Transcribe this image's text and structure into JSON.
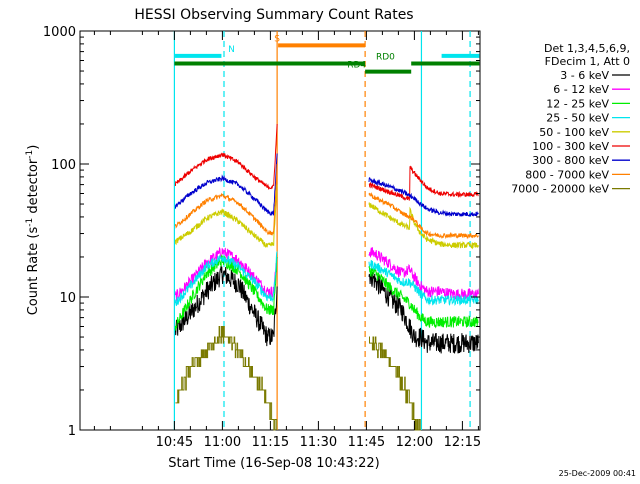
{
  "chart_data": {
    "type": "line",
    "title": "HESSI Observing Summary Count Rates",
    "xlabel": "Start Time (16-Sep-08 10:43:22)",
    "ylabel_main": "Count Rate (s",
    "ylabel_sup1": "-1",
    "ylabel_mid": " detector",
    "ylabel_sup2": "-1",
    "ylabel_end": ")",
    "y_scale": "log",
    "ylim": [
      1,
      1000
    ],
    "xlim_minutes": [
      615.5,
      740.5
    ],
    "x_ticks": [
      {
        "label": "10:45",
        "t": 645
      },
      {
        "label": "11:00",
        "t": 660
      },
      {
        "label": "11:15",
        "t": 675
      },
      {
        "label": "11:30",
        "t": 690
      },
      {
        "label": "11:45",
        "t": 705
      },
      {
        "label": "12:00",
        "t": 720
      },
      {
        "label": "12:15",
        "t": 735
      }
    ],
    "y_ticks": [
      {
        "label": "1",
        "v": 1
      },
      {
        "label": "10",
        "v": 10
      },
      {
        "label": "100",
        "v": 100
      },
      {
        "label": "1000",
        "v": 1000
      }
    ],
    "legend": {
      "header": [
        "Det 1,3,4,5,6,9,",
        "FDecim 1, Att 0"
      ],
      "entries": [
        {
          "label": "3 - 6 keV",
          "color": "#000000"
        },
        {
          "label": "6 - 12 keV",
          "color": "#ff00ff"
        },
        {
          "label": "12 - 25 keV",
          "color": "#00ee00"
        },
        {
          "label": "25 - 50 keV",
          "color": "#00e5ee"
        },
        {
          "label": "50 - 100 keV",
          "color": "#cccc00"
        },
        {
          "label": "100 - 300 keV",
          "color": "#ee0000"
        },
        {
          "label": "300 - 800 keV",
          "color": "#0000cc"
        },
        {
          "label": "800 - 7000 keV",
          "color": "#ff8000"
        },
        {
          "label": "7000 - 20000 keV",
          "color": "#7a7a00"
        }
      ]
    },
    "flag_bars": [
      {
        "label": "N",
        "color": "#00e5ee",
        "segments": [
          [
            645.2,
            659.7
          ],
          [
            728.5,
            740.3
          ]
        ],
        "level": 650,
        "label_t": 661.8
      },
      {
        "label": "S",
        "color": "#ff8000",
        "segments": [
          [
            677.4,
            704.6
          ]
        ],
        "level": 780,
        "label_t": 676.2
      },
      {
        "label": "RD0",
        "color": "#008000",
        "segments": [
          [
            645.0,
            704.6
          ],
          [
            719.0,
            740.3
          ]
        ],
        "level": 570,
        "label_t": 708.0
      },
      {
        "label": "RD4",
        "color": "#008000",
        "segments": [
          [
            704.6,
            719.0
          ]
        ],
        "level": 495,
        "label_t": 699.0
      }
    ],
    "markers": [
      {
        "type": "solid",
        "t": 645.0,
        "color": "#00e5ee"
      },
      {
        "type": "dashed",
        "t": 660.5,
        "color": "#00e5ee"
      },
      {
        "type": "solid",
        "t": 677.1,
        "color": "#ff8000"
      },
      {
        "type": "dashed",
        "t": 704.6,
        "color": "#ff8000"
      },
      {
        "type": "solid",
        "t": 722.2,
        "color": "#00e5ee"
      },
      {
        "type": "dashed",
        "t": 737.4,
        "color": "#00e5ee"
      }
    ],
    "series": [
      {
        "name": "3 - 6 keV",
        "color": "#000000",
        "noise": 0.18,
        "x": [
          645.3,
          650,
          655,
          660,
          665,
          670,
          674,
          676,
          677.1,
          705.8,
          708,
          712,
          716,
          718.5,
          720,
          722,
          724,
          728,
          732,
          736,
          740
        ],
        "y": [
          5.5,
          7.5,
          11,
          15,
          12.5,
          7.5,
          5,
          5,
          12,
          15,
          13,
          10,
          8,
          6,
          5,
          5,
          4.5,
          4.5,
          4.5,
          4.5,
          4.5
        ]
      },
      {
        "name": "6 - 12 keV",
        "color": "#ff00ff",
        "noise": 0.1,
        "x": [
          645.3,
          650,
          655,
          660,
          665,
          670,
          674,
          676,
          677.1,
          705.8,
          708,
          712,
          716,
          718.5,
          720,
          722,
          724,
          728,
          732,
          736,
          740
        ],
        "y": [
          10,
          13,
          18,
          22,
          19,
          14,
          11,
          11,
          20,
          22,
          21,
          18,
          15,
          16,
          14,
          12,
          11,
          11,
          10.5,
          10.5,
          10.5
        ]
      },
      {
        "name": "12 - 25 keV",
        "color": "#00ee00",
        "noise": 0.1,
        "x": [
          645.3,
          650,
          655,
          660,
          665,
          670,
          674,
          676,
          677.1,
          705.8,
          708,
          712,
          716,
          718.5,
          720,
          722,
          724,
          728,
          732,
          736,
          740
        ],
        "y": [
          6,
          9.5,
          15,
          19,
          16,
          11,
          8,
          8,
          20,
          16,
          15,
          12,
          10,
          9,
          8,
          7,
          6.5,
          6.5,
          6.5,
          6.5,
          6.5
        ]
      },
      {
        "name": "25 - 50 keV",
        "color": "#00e5ee",
        "noise": 0.08,
        "x": [
          645.3,
          650,
          655,
          660,
          665,
          670,
          674,
          676,
          677.1,
          705.8,
          708,
          712,
          716,
          718.5,
          720,
          722,
          724,
          728,
          732,
          736,
          740
        ],
        "y": [
          9,
          12,
          17,
          20,
          17,
          13,
          10,
          10,
          22,
          18,
          17,
          15,
          13,
          13,
          12,
          10.5,
          9.5,
          9.5,
          9.5,
          9.5,
          9.5
        ]
      },
      {
        "name": "50 - 100 keV",
        "color": "#cccc00",
        "noise": 0.05,
        "x": [
          645.3,
          650,
          655,
          660,
          665,
          670,
          674,
          676,
          677.1,
          705.8,
          708,
          712,
          716,
          718.5,
          718.6,
          720,
          722,
          724,
          728,
          732,
          736,
          740
        ],
        "y": [
          26,
          31,
          39,
          44,
          37,
          29,
          24,
          25,
          70,
          50,
          46,
          40,
          35,
          33,
          45,
          36,
          30,
          27,
          25,
          24.5,
          24.5,
          24.5
        ]
      },
      {
        "name": "100 - 300 keV",
        "color": "#ee0000",
        "noise": 0.04,
        "x": [
          645.3,
          650,
          655,
          660,
          665,
          670,
          674,
          676,
          677.1,
          705.8,
          708,
          712,
          716,
          718.5,
          718.6,
          720,
          722,
          724,
          728,
          732,
          736,
          740
        ],
        "y": [
          70,
          88,
          108,
          118,
          103,
          80,
          67,
          67,
          200,
          70,
          67,
          62,
          57,
          54,
          95,
          85,
          75,
          66,
          60,
          59,
          59,
          59
        ]
      },
      {
        "name": "300 - 800 keV",
        "color": "#0000cc",
        "noise": 0.04,
        "x": [
          645.3,
          650,
          655,
          660,
          665,
          670,
          674,
          676,
          677.1,
          705.8,
          708,
          712,
          716,
          718.5,
          720,
          722,
          724,
          728,
          732,
          736,
          740
        ],
        "y": [
          48,
          60,
          72,
          78,
          70,
          55,
          44,
          42,
          120,
          76,
          73,
          68,
          62,
          58,
          55,
          50,
          46,
          43,
          42,
          42,
          42
        ]
      },
      {
        "name": "800 - 7000 keV",
        "color": "#ff8000",
        "noise": 0.04,
        "x": [
          645.3,
          650,
          655,
          660,
          665,
          670,
          674,
          676,
          677.1,
          705.8,
          708,
          712,
          716,
          718.5,
          720,
          722,
          724,
          728,
          732,
          736,
          740
        ],
        "y": [
          34,
          42,
          53,
          58,
          51,
          39,
          31,
          30,
          100,
          60,
          55,
          50,
          43,
          40,
          38,
          33,
          30,
          29,
          29,
          29,
          29
        ]
      },
      {
        "name": "7000 - 20000 keV",
        "color": "#7a7a00",
        "noise": 0.0,
        "steps": [
          {
            "x": [
              645.3,
              647,
              649,
              651,
              653,
              655,
              657,
              659,
              660.5,
              662,
              664,
              666,
              668,
              670,
              672,
              674,
              676,
              677.1
            ],
            "y": [
              1.7,
              2,
              2.7,
              3.1,
              3.5,
              4,
              4.6,
              5,
              5.2,
              4.8,
              4.2,
              3.5,
              3,
              2.5,
              2.1,
              1.6,
              1.2,
              1.0
            ]
          },
          {
            "x": [
              705.8,
              707,
              709,
              711,
              713,
              715,
              717,
              718.5,
              720,
              722
            ],
            "y": [
              4.8,
              4.5,
              4.1,
              3.6,
              3.0,
              2.6,
              2.1,
              1.6,
              1.2,
              1.0
            ]
          }
        ]
      }
    ]
  },
  "footer": {
    "timestamp": "25-Dec-2009 00:41"
  }
}
